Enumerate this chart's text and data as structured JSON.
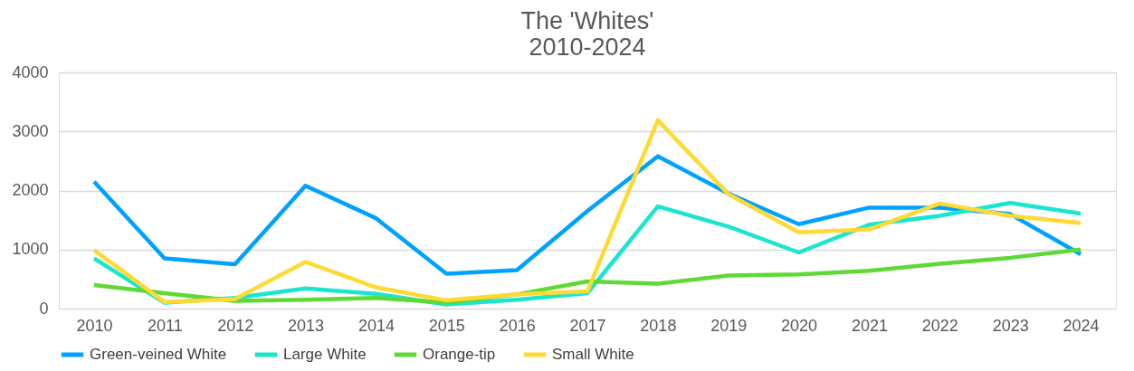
{
  "chart_data": {
    "type": "line",
    "title": [
      "The 'Whites'",
      "2010-2024"
    ],
    "categories": [
      "2010",
      "2011",
      "2012",
      "2013",
      "2014",
      "2015",
      "2016",
      "2017",
      "2018",
      "2019",
      "2020",
      "2021",
      "2022",
      "2023",
      "2024"
    ],
    "series": [
      {
        "name": "Green-veined White",
        "color": "#00a2ff",
        "values": [
          2150,
          850,
          750,
          2080,
          1530,
          590,
          650,
          1650,
          2580,
          1950,
          1430,
          1710,
          1710,
          1600,
          920
        ]
      },
      {
        "name": "Large White",
        "color": "#1ae6cf",
        "values": [
          850,
          100,
          180,
          340,
          250,
          70,
          150,
          260,
          1730,
          1390,
          950,
          1420,
          1570,
          1790,
          1610
        ]
      },
      {
        "name": "Orange-tip",
        "color": "#5ed935",
        "values": [
          400,
          260,
          130,
          150,
          180,
          100,
          240,
          460,
          420,
          560,
          580,
          640,
          760,
          860,
          1000
        ]
      },
      {
        "name": "Small White",
        "color": "#ffd934",
        "values": [
          990,
          110,
          160,
          790,
          360,
          140,
          240,
          290,
          3190,
          1940,
          1290,
          1340,
          1780,
          1570,
          1450
        ]
      }
    ],
    "ylim": [
      0,
      4000
    ],
    "yticks": [
      0,
      1000,
      2000,
      3000,
      4000
    ],
    "grid": "y",
    "legend": "bottom",
    "marker": "none",
    "line_style": "solid"
  }
}
